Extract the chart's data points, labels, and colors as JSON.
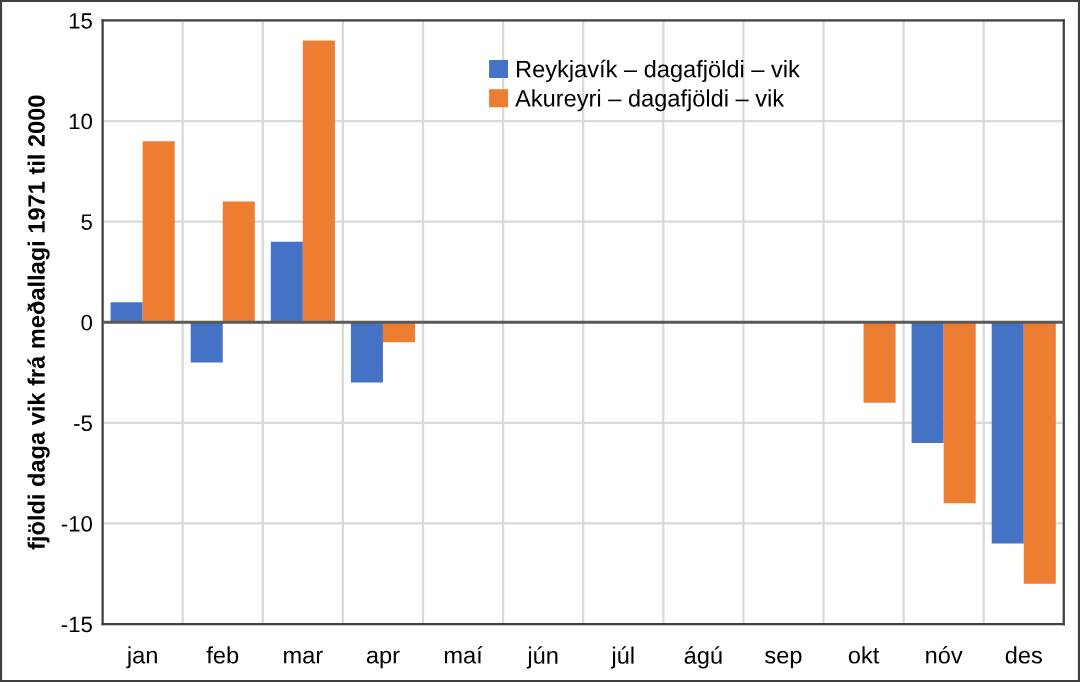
{
  "chart_data": {
    "type": "bar",
    "ylabel": "fjöldi daga vik frá meðallagi 1971 til 2000",
    "categories": [
      "jan",
      "feb",
      "mar",
      "apr",
      "maí",
      "jún",
      "júl",
      "ágú",
      "sep",
      "okt",
      "nóv",
      "des"
    ],
    "series": [
      {
        "name": "Reykjavík – dagafjöldi – vik",
        "color": "#4472c4",
        "values": [
          1,
          -2,
          4,
          -3,
          null,
          null,
          null,
          null,
          null,
          null,
          -6,
          -11
        ]
      },
      {
        "name": "Akureyri – dagafjöldi – vik",
        "color": "#ed7d31",
        "values": [
          9,
          6,
          14,
          -1,
          null,
          null,
          null,
          null,
          null,
          -4,
          -9,
          -13
        ]
      }
    ],
    "ylim": [
      -15,
      15
    ],
    "yticks": [
      -15,
      -10,
      -5,
      0,
      5,
      10,
      15
    ],
    "grid": true,
    "legend": "top"
  }
}
